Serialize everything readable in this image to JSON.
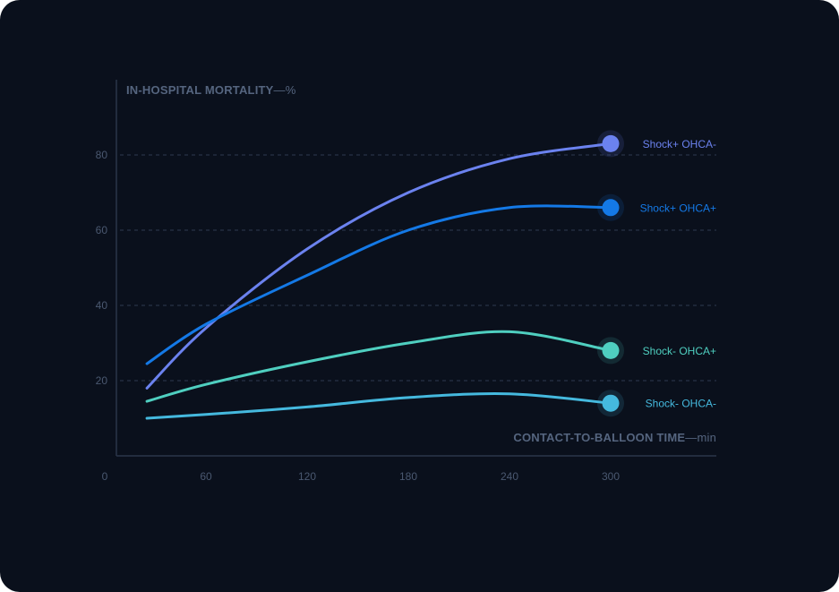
{
  "chart_data": {
    "type": "line",
    "ylabel": "IN-HOSPITAL MORTALITY",
    "yunit": "—%",
    "xlabel": "CONTACT-TO-BALLOON TIME",
    "xunit": "—min",
    "xlim": [
      0,
      360
    ],
    "ylim": [
      0,
      100
    ],
    "xticks": [
      "0",
      "60",
      "120",
      "180",
      "240",
      "300"
    ],
    "yticks": [
      "20",
      "40",
      "60",
      "80"
    ],
    "grid": true,
    "series": [
      {
        "name": "Shock+ OHCA-",
        "color": "#6b82ef",
        "x": [
          25,
          60,
          120,
          180,
          240,
          300
        ],
        "y": [
          18,
          34,
          55,
          70,
          79,
          83
        ]
      },
      {
        "name": "Shock+ OHCA+",
        "color": "#1479e6",
        "x": [
          25,
          60,
          120,
          180,
          240,
          300
        ],
        "y": [
          24.5,
          35,
          48,
          60,
          66,
          66
        ]
      },
      {
        "name": "Shock- OHCA+",
        "color": "#4fcfc0",
        "x": [
          25,
          60,
          120,
          180,
          240,
          300
        ],
        "y": [
          14.5,
          19,
          25,
          30,
          33,
          28
        ]
      },
      {
        "name": "Shock- OHCA-",
        "color": "#45b9de",
        "x": [
          25,
          60,
          120,
          180,
          240,
          300
        ],
        "y": [
          10,
          11,
          13,
          15.5,
          16.5,
          14
        ]
      }
    ]
  }
}
